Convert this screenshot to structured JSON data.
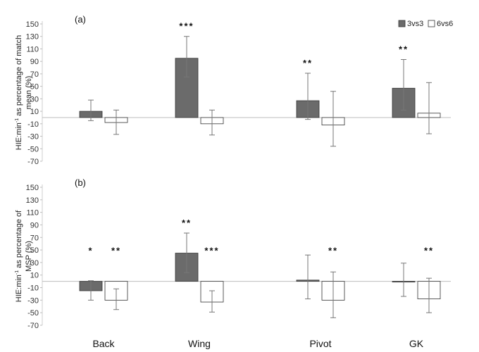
{
  "chart_data": [
    {
      "panel": "(a)",
      "type": "bar",
      "ylabel_line1_pre": "HIE:min",
      "ylabel_line1_sup": "-1",
      "ylabel_line1_post": " as percentage of match",
      "ylabel_line2": "mean (%)",
      "ylim": [
        -70,
        150
      ],
      "yticks": [
        150,
        130,
        110,
        90,
        70,
        50,
        30,
        10,
        -10,
        -30,
        -50,
        -70
      ],
      "categories": [
        "Back",
        "Wing",
        "Pivot",
        "GK"
      ],
      "series": [
        {
          "name": "3vs3",
          "color": "#6b6b6b",
          "values": [
            10,
            95,
            27,
            47
          ],
          "error_upper": [
            28,
            130,
            71,
            93
          ],
          "error_lower": [
            -5,
            65,
            -3,
            12
          ],
          "significance": [
            "",
            "***",
            "**",
            "**"
          ]
        },
        {
          "name": "6vs6",
          "color": "#ffffff",
          "values": [
            -8,
            -10,
            -12,
            7
          ],
          "error_upper": [
            12,
            12,
            42,
            56
          ],
          "error_lower": [
            -27,
            -28,
            -46,
            -26
          ],
          "significance": [
            "",
            "",
            "",
            ""
          ]
        }
      ],
      "legend_position": "top-right"
    },
    {
      "panel": "(b)",
      "type": "bar",
      "ylabel_line1_pre": "HIE:min",
      "ylabel_line1_sup": "-1",
      "ylabel_line1_post": " as percentage of",
      "ylabel_line2": "MSP (%)",
      "ylim": [
        -70,
        150
      ],
      "yticks": [
        150,
        130,
        110,
        90,
        70,
        50,
        30,
        10,
        -10,
        -30,
        -50,
        -70
      ],
      "categories": [
        "Back",
        "Wing",
        "Pivot",
        "GK"
      ],
      "series": [
        {
          "name": "3vs3",
          "color": "#6b6b6b",
          "values": [
            -15,
            45,
            2,
            -1
          ],
          "error_upper": [
            1,
            77,
            42,
            29
          ],
          "error_lower": [
            -30,
            14,
            -28,
            -24
          ],
          "significance": [
            "*",
            "**",
            "",
            ""
          ]
        },
        {
          "name": "6vs6",
          "color": "#ffffff",
          "values": [
            -30,
            -33,
            -30,
            -28
          ],
          "error_upper": [
            -12,
            -15,
            15,
            5
          ],
          "error_lower": [
            -45,
            -49,
            -58,
            -50
          ],
          "significance": [
            "**",
            "***",
            "**",
            "**"
          ]
        }
      ]
    }
  ],
  "legend": {
    "items": [
      "3vs3",
      "6vs6"
    ]
  }
}
